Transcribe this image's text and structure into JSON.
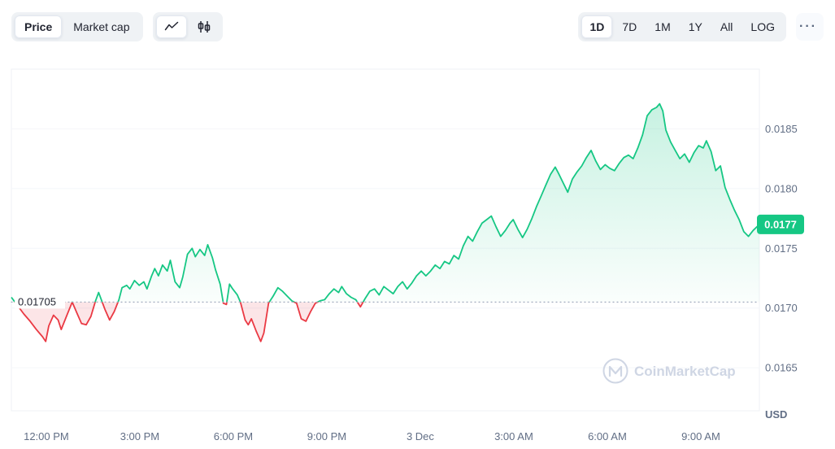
{
  "toolbar": {
    "view_toggle": {
      "price": "Price",
      "market_cap": "Market cap"
    },
    "chart_type_icons": [
      {
        "name": "line-chart-icon",
        "active": true
      },
      {
        "name": "candlestick-icon",
        "active": false
      }
    ],
    "ranges": [
      {
        "label": "1D",
        "active": true
      },
      {
        "label": "7D",
        "active": false
      },
      {
        "label": "1M",
        "active": false
      },
      {
        "label": "1Y",
        "active": false
      },
      {
        "label": "All",
        "active": false
      },
      {
        "label": "LOG",
        "active": false
      }
    ],
    "more_label": "···"
  },
  "theme": {
    "up_green": "#16c784",
    "down_red": "#ea3943",
    "control_bg": "#eff2f5",
    "axis_text": "#616e85",
    "watermark": "#cfd6e4"
  },
  "chart_data": {
    "type": "area",
    "title": "1D price chart",
    "watermark": "CoinMarketCap",
    "baseline": {
      "value": 0.01705,
      "label": "0.01705"
    },
    "current_price": {
      "value": 0.0177,
      "label": "0.0177"
    },
    "colors": {
      "up": "#16c784",
      "down": "#ea3943",
      "baseline": "#a0aabd",
      "axis_text": "#616e85"
    },
    "y_axis": {
      "range": [
        0.01614,
        0.019
      ],
      "unit_label": "USD",
      "ticks": [
        {
          "value": 0.0185,
          "label": "0.0185"
        },
        {
          "value": 0.018,
          "label": "0.0180"
        },
        {
          "value": 0.0175,
          "label": "0.0175"
        },
        {
          "value": 0.017,
          "label": "0.0170"
        },
        {
          "value": 0.0165,
          "label": "0.0165"
        }
      ]
    },
    "x_axis": {
      "range_hours": [
        0,
        24
      ],
      "grid": false,
      "ticks": [
        {
          "t": 1.12,
          "label": "12:00 PM"
        },
        {
          "t": 4.12,
          "label": "3:00 PM"
        },
        {
          "t": 7.12,
          "label": "6:00 PM"
        },
        {
          "t": 10.12,
          "label": "9:00 PM"
        },
        {
          "t": 13.12,
          "label": "3 Dec"
        },
        {
          "t": 16.12,
          "label": "3:00 AM"
        },
        {
          "t": 19.12,
          "label": "6:00 AM"
        },
        {
          "t": 22.12,
          "label": "9:00 AM"
        }
      ]
    },
    "points": [
      [
        0.0,
        0.01709
      ],
      [
        0.2,
        0.01702
      ],
      [
        0.4,
        0.01695
      ],
      [
        0.6,
        0.01689
      ],
      [
        0.8,
        0.01682
      ],
      [
        1.0,
        0.01676
      ],
      [
        1.1,
        0.01672
      ],
      [
        1.2,
        0.01685
      ],
      [
        1.35,
        0.01694
      ],
      [
        1.5,
        0.0169
      ],
      [
        1.6,
        0.01682
      ],
      [
        1.75,
        0.01692
      ],
      [
        1.95,
        0.01705
      ],
      [
        2.1,
        0.01696
      ],
      [
        2.25,
        0.01687
      ],
      [
        2.4,
        0.01686
      ],
      [
        2.55,
        0.01693
      ],
      [
        2.7,
        0.01706
      ],
      [
        2.8,
        0.01713
      ],
      [
        3.0,
        0.01699
      ],
      [
        3.15,
        0.0169
      ],
      [
        3.3,
        0.01697
      ],
      [
        3.45,
        0.01707
      ],
      [
        3.55,
        0.01717
      ],
      [
        3.7,
        0.01719
      ],
      [
        3.8,
        0.01716
      ],
      [
        3.95,
        0.01723
      ],
      [
        4.1,
        0.01719
      ],
      [
        4.25,
        0.01722
      ],
      [
        4.35,
        0.01716
      ],
      [
        4.5,
        0.01727
      ],
      [
        4.6,
        0.01733
      ],
      [
        4.72,
        0.01727
      ],
      [
        4.85,
        0.01736
      ],
      [
        5.0,
        0.01731
      ],
      [
        5.1,
        0.0174
      ],
      [
        5.25,
        0.01722
      ],
      [
        5.4,
        0.01717
      ],
      [
        5.5,
        0.01726
      ],
      [
        5.65,
        0.01745
      ],
      [
        5.8,
        0.0175
      ],
      [
        5.9,
        0.01743
      ],
      [
        6.05,
        0.01749
      ],
      [
        6.2,
        0.01744
      ],
      [
        6.3,
        0.01753
      ],
      [
        6.45,
        0.01742
      ],
      [
        6.55,
        0.01732
      ],
      [
        6.7,
        0.0172
      ],
      [
        6.8,
        0.01704
      ],
      [
        6.9,
        0.01703
      ],
      [
        7.0,
        0.0172
      ],
      [
        7.1,
        0.01716
      ],
      [
        7.25,
        0.01711
      ],
      [
        7.35,
        0.01705
      ],
      [
        7.5,
        0.0169
      ],
      [
        7.6,
        0.01686
      ],
      [
        7.7,
        0.01691
      ],
      [
        7.85,
        0.01681
      ],
      [
        8.0,
        0.01672
      ],
      [
        8.1,
        0.01679
      ],
      [
        8.25,
        0.01704
      ],
      [
        8.4,
        0.0171
      ],
      [
        8.55,
        0.01717
      ],
      [
        8.7,
        0.01714
      ],
      [
        8.85,
        0.0171
      ],
      [
        9.0,
        0.01706
      ],
      [
        9.15,
        0.01704
      ],
      [
        9.3,
        0.01691
      ],
      [
        9.45,
        0.01689
      ],
      [
        9.6,
        0.01697
      ],
      [
        9.75,
        0.01704
      ],
      [
        9.9,
        0.01706
      ],
      [
        10.05,
        0.01707
      ],
      [
        10.2,
        0.01712
      ],
      [
        10.35,
        0.01716
      ],
      [
        10.5,
        0.01713
      ],
      [
        10.6,
        0.01718
      ],
      [
        10.75,
        0.01712
      ],
      [
        10.9,
        0.01709
      ],
      [
        11.05,
        0.01707
      ],
      [
        11.2,
        0.01701
      ],
      [
        11.35,
        0.01708
      ],
      [
        11.5,
        0.01714
      ],
      [
        11.65,
        0.01716
      ],
      [
        11.8,
        0.01711
      ],
      [
        11.95,
        0.01718
      ],
      [
        12.1,
        0.01715
      ],
      [
        12.25,
        0.01712
      ],
      [
        12.4,
        0.01718
      ],
      [
        12.55,
        0.01722
      ],
      [
        12.7,
        0.01716
      ],
      [
        12.85,
        0.01721
      ],
      [
        13.0,
        0.01727
      ],
      [
        13.15,
        0.01731
      ],
      [
        13.3,
        0.01727
      ],
      [
        13.45,
        0.01731
      ],
      [
        13.6,
        0.01736
      ],
      [
        13.75,
        0.01733
      ],
      [
        13.9,
        0.01739
      ],
      [
        14.05,
        0.01737
      ],
      [
        14.2,
        0.01744
      ],
      [
        14.35,
        0.01741
      ],
      [
        14.5,
        0.01752
      ],
      [
        14.65,
        0.0176
      ],
      [
        14.8,
        0.01756
      ],
      [
        14.95,
        0.01764
      ],
      [
        15.1,
        0.01771
      ],
      [
        15.25,
        0.01774
      ],
      [
        15.4,
        0.01777
      ],
      [
        15.55,
        0.01768
      ],
      [
        15.7,
        0.0176
      ],
      [
        15.85,
        0.01765
      ],
      [
        16.0,
        0.01771
      ],
      [
        16.1,
        0.01774
      ],
      [
        16.25,
        0.01766
      ],
      [
        16.4,
        0.01759
      ],
      [
        16.55,
        0.01766
      ],
      [
        16.7,
        0.01775
      ],
      [
        16.85,
        0.01785
      ],
      [
        17.0,
        0.01794
      ],
      [
        17.15,
        0.01803
      ],
      [
        17.3,
        0.01812
      ],
      [
        17.45,
        0.01818
      ],
      [
        17.55,
        0.01813
      ],
      [
        17.7,
        0.01805
      ],
      [
        17.85,
        0.01797
      ],
      [
        18.0,
        0.01808
      ],
      [
        18.15,
        0.01814
      ],
      [
        18.3,
        0.01819
      ],
      [
        18.45,
        0.01826
      ],
      [
        18.6,
        0.01832
      ],
      [
        18.75,
        0.01823
      ],
      [
        18.9,
        0.01816
      ],
      [
        19.05,
        0.0182
      ],
      [
        19.2,
        0.01817
      ],
      [
        19.35,
        0.01815
      ],
      [
        19.5,
        0.01821
      ],
      [
        19.65,
        0.01826
      ],
      [
        19.8,
        0.01828
      ],
      [
        19.95,
        0.01825
      ],
      [
        20.1,
        0.01834
      ],
      [
        20.25,
        0.01845
      ],
      [
        20.4,
        0.01861
      ],
      [
        20.55,
        0.01866
      ],
      [
        20.7,
        0.01868
      ],
      [
        20.8,
        0.01871
      ],
      [
        20.9,
        0.01865
      ],
      [
        21.0,
        0.01849
      ],
      [
        21.15,
        0.01839
      ],
      [
        21.3,
        0.01832
      ],
      [
        21.45,
        0.01825
      ],
      [
        21.6,
        0.01829
      ],
      [
        21.75,
        0.01822
      ],
      [
        21.9,
        0.0183
      ],
      [
        22.05,
        0.01836
      ],
      [
        22.2,
        0.01834
      ],
      [
        22.3,
        0.0184
      ],
      [
        22.45,
        0.01831
      ],
      [
        22.6,
        0.01815
      ],
      [
        22.75,
        0.01819
      ],
      [
        22.9,
        0.01801
      ],
      [
        23.05,
        0.01791
      ],
      [
        23.2,
        0.01782
      ],
      [
        23.35,
        0.01774
      ],
      [
        23.5,
        0.01764
      ],
      [
        23.65,
        0.0176
      ],
      [
        23.8,
        0.01765
      ],
      [
        24.0,
        0.0177
      ]
    ]
  }
}
